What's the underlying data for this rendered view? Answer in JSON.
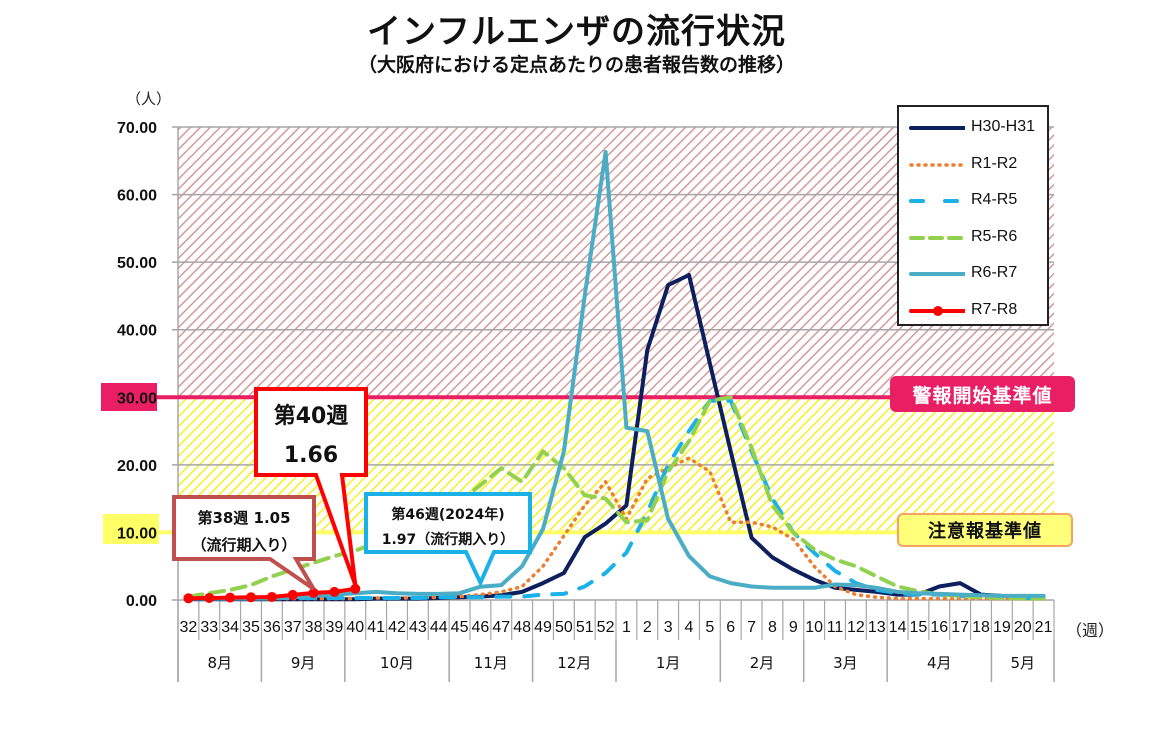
{
  "chart_data": {
    "type": "line",
    "title": "インフルエンザの流行状況",
    "subtitle": "（大阪府における定点あたりの患者報告数の推移）",
    "xlabel": "（週）",
    "ylabel": "（人）",
    "ylim": [
      0,
      70
    ],
    "yticks": [
      "0.00",
      "10.00",
      "20.00",
      "30.00",
      "40.00",
      "50.00",
      "60.00",
      "70.00"
    ],
    "grid": true,
    "legend_position": "top-right",
    "categories": [
      "32",
      "33",
      "34",
      "35",
      "36",
      "37",
      "38",
      "39",
      "40",
      "41",
      "42",
      "43",
      "44",
      "45",
      "46",
      "47",
      "48",
      "49",
      "50",
      "51",
      "52",
      "1",
      "2",
      "3",
      "4",
      "5",
      "6",
      "7",
      "8",
      "9",
      "10",
      "11",
      "12",
      "13",
      "14",
      "15",
      "16",
      "17",
      "18",
      "19",
      "20",
      "21"
    ],
    "months": [
      {
        "label": "8月",
        "weeks": 4
      },
      {
        "label": "9月",
        "weeks": 4
      },
      {
        "label": "10月",
        "weeks": 5
      },
      {
        "label": "11月",
        "weeks": 4
      },
      {
        "label": "12月",
        "weeks": 4
      },
      {
        "label": "1月",
        "weeks": 5
      },
      {
        "label": "2月",
        "weeks": 4
      },
      {
        "label": "3月",
        "weeks": 4
      },
      {
        "label": "4月",
        "weeks": 5
      },
      {
        "label": "5月",
        "weeks": 3
      }
    ],
    "thresholds": [
      {
        "name": "警報開始基準値",
        "value": 30,
        "color": "#e91e63"
      },
      {
        "name": "注意報基準値",
        "value": 10,
        "color": "#ffff66"
      }
    ],
    "series": [
      {
        "name": "H30-H31",
        "color": "#0d1f5c",
        "style": "solid",
        "values": [
          0.1,
          0.1,
          0.1,
          0.1,
          0.1,
          0.1,
          0.1,
          0.1,
          0.1,
          0.2,
          0.2,
          0.2,
          0.3,
          0.4,
          0.5,
          0.7,
          1.2,
          2.5,
          4.0,
          9.3,
          11.3,
          14.0,
          37.0,
          46.6,
          48.1,
          35.0,
          22.0,
          9.2,
          6.3,
          4.5,
          3.0,
          1.8,
          1.5,
          1.2,
          0.8,
          0.8,
          2.0,
          2.5,
          0.8,
          0.6,
          0.5,
          0.5
        ]
      },
      {
        "name": "R1-R2",
        "color": "#ed7d31",
        "style": "dotted",
        "values": [
          0.2,
          0.2,
          0.2,
          0.2,
          0.2,
          0.2,
          0.2,
          0.2,
          0.2,
          0.3,
          0.3,
          0.3,
          0.4,
          0.5,
          0.8,
          1.2,
          2.0,
          5.0,
          9.5,
          14.0,
          17.5,
          12.0,
          18.0,
          19.5,
          21.0,
          19.0,
          11.5,
          11.5,
          10.8,
          9.0,
          5.0,
          2.0,
          0.8,
          0.4,
          0.2,
          0.2,
          0.2,
          0.2,
          0.2,
          0.2,
          0.2,
          0.2
        ]
      },
      {
        "name": "R4-R5",
        "color": "#1ab0e8",
        "style": "dashed-long",
        "values": [
          0.3,
          0.3,
          0.3,
          0.3,
          0.3,
          0.3,
          0.3,
          0.3,
          0.3,
          0.3,
          0.3,
          0.3,
          0.4,
          0.4,
          0.4,
          0.5,
          0.5,
          0.8,
          0.9,
          2.0,
          4.0,
          7.0,
          13.0,
          20.0,
          25.0,
          29.5,
          29.5,
          22.0,
          15.0,
          10.0,
          7.0,
          4.3,
          2.5,
          1.5,
          1.0,
          0.8,
          0.8,
          0.6,
          0.5,
          0.4,
          0.3,
          0.3
        ]
      },
      {
        "name": "R5-R6",
        "color": "#92d050",
        "style": "dashed",
        "values": [
          0.5,
          1.0,
          1.5,
          2.2,
          3.5,
          4.5,
          5.5,
          6.5,
          7.3,
          8.5,
          9.5,
          11.0,
          12.5,
          14.5,
          17.0,
          19.5,
          17.5,
          22.0,
          19.5,
          15.5,
          15.0,
          11.5,
          11.8,
          19.0,
          23.5,
          29.5,
          30.0,
          22.5,
          14.0,
          10.0,
          7.5,
          6.0,
          5.0,
          3.5,
          2.0,
          1.3,
          0.8,
          0.6,
          0.4,
          0.3,
          0.2,
          0.2
        ]
      },
      {
        "name": "R6-R7",
        "color": "#4bacc6",
        "style": "solid",
        "values": [
          0.2,
          0.2,
          0.2,
          0.2,
          0.2,
          0.4,
          0.6,
          0.8,
          1.0,
          1.2,
          1.0,
          0.9,
          0.9,
          1.0,
          1.97,
          2.2,
          5.0,
          10.5,
          22.0,
          45.0,
          66.3,
          25.5,
          25.0,
          12.0,
          6.5,
          3.5,
          2.5,
          2.0,
          1.8,
          1.8,
          1.8,
          2.3,
          2.2,
          1.8,
          1.2,
          1.0,
          0.9,
          0.8,
          0.7,
          0.6,
          0.6,
          0.6
        ]
      },
      {
        "name": "R7-R8",
        "color": "#ff0000",
        "style": "solid-markers",
        "values": [
          0.25,
          0.3,
          0.35,
          0.4,
          0.45,
          0.75,
          1.05,
          1.2,
          1.66
        ]
      }
    ],
    "annotations": [
      {
        "id": "week40",
        "lines": [
          "第40週",
          "1.66"
        ],
        "color": "#ff0000",
        "target_week": "40",
        "target_value": 1.66
      },
      {
        "id": "week38",
        "lines": [
          "第38週 1.05",
          "（流行期入り）"
        ],
        "color": "#c0504d",
        "target_week": "38",
        "target_value": 1.05
      },
      {
        "id": "week46",
        "lines": [
          "第46週(2024年)",
          "1.97（流行期入り）"
        ],
        "color": "#1ab0e8",
        "target_week": "46",
        "target_value": 1.97
      }
    ]
  },
  "header": {
    "title": "インフルエンザの流行状況",
    "subtitle": "（大阪府における定点あたりの患者報告数の推移）"
  },
  "axis": {
    "y_unit": "（人）",
    "x_unit": "（週）"
  },
  "badges": {
    "alarm": "警報開始基準値",
    "warning": "注意報基準値"
  }
}
